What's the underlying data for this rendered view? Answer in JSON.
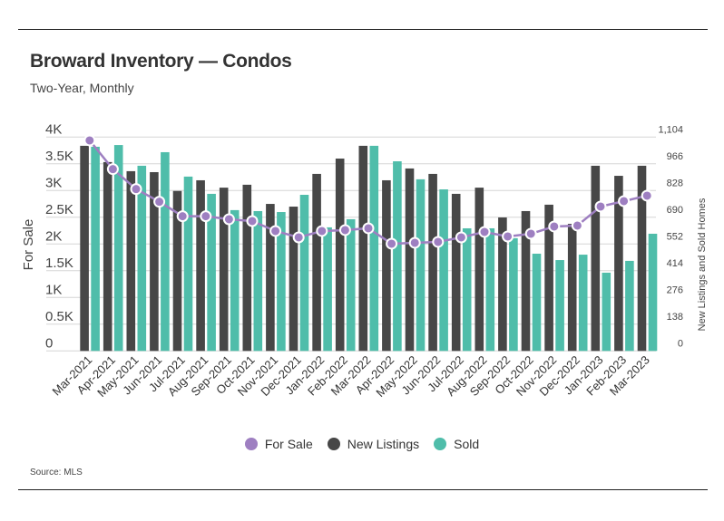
{
  "title": "Broward Inventory — Condos",
  "subtitle": "Two-Year, Monthly",
  "source": "Source: MLS",
  "colors": {
    "for_sale": "#9e7fc1",
    "new_listings": "#474747",
    "sold": "#4fbdaa"
  },
  "chart_data": {
    "type": "bar+line",
    "categories": [
      "Mar-2021",
      "Apr-2021",
      "May-2021",
      "Jun-2021",
      "Jul-2021",
      "Aug-2021",
      "Sep-2021",
      "Oct-2021",
      "Nov-2021",
      "Dec-2021",
      "Jan-2022",
      "Feb-2022",
      "Mar-2022",
      "Apr-2022",
      "May-2022",
      "Jun-2022",
      "Jul-2022",
      "Aug-2022",
      "Sep-2022",
      "Oct-2022",
      "Nov-2022",
      "Dec-2022",
      "Jan-2023",
      "Feb-2023",
      "Mar-2023"
    ],
    "series": [
      {
        "name": "For Sale",
        "type": "line",
        "axis": "left",
        "values": [
          3938,
          3401,
          3028,
          2791,
          2520,
          2520,
          2463,
          2429,
          2243,
          2124,
          2243,
          2260,
          2294,
          2006,
          2023,
          2040,
          2124,
          2226,
          2141,
          2192,
          2328,
          2345,
          2701,
          2802,
          2904
        ]
      },
      {
        "name": "New Listings",
        "type": "bar",
        "axis": "right",
        "values": [
          1059,
          975,
          928,
          923,
          826,
          881,
          843,
          858,
          759,
          745,
          914,
          993,
          1059,
          881,
          942,
          914,
          811,
          843,
          689,
          722,
          755,
          656,
          956,
          904,
          956
        ]
      },
      {
        "name": "Sold",
        "type": "bar",
        "axis": "right",
        "values": [
          1054,
          1063,
          956,
          1026,
          900,
          811,
          727,
          722,
          717,
          806,
          638,
          680,
          1059,
          979,
          886,
          834,
          633,
          633,
          582,
          502,
          469,
          497,
          404,
          465,
          605
        ]
      }
    ],
    "left_axis": {
      "label": "For Sale",
      "range": [
        0,
        4000
      ],
      "ticks": [
        "0",
        "0.5K",
        "1K",
        "1.5K",
        "2K",
        "2.5K",
        "3K",
        "3.5K",
        "4K"
      ]
    },
    "right_axis": {
      "label": "New Listings and Sold Homes",
      "range": [
        0,
        1104
      ],
      "ticks": [
        "0",
        "138",
        "276",
        "414",
        "552",
        "690",
        "828",
        "966",
        "1,104"
      ]
    },
    "grid": true,
    "legend": {
      "placement": "bottom",
      "entries": [
        "For Sale",
        "New Listings",
        "Sold"
      ]
    }
  }
}
